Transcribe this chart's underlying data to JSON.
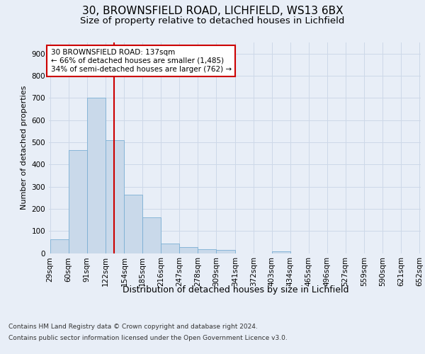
{
  "title1": "30, BROWNSFIELD ROAD, LICHFIELD, WS13 6BX",
  "title2": "Size of property relative to detached houses in Lichfield",
  "xlabel": "Distribution of detached houses by size in Lichfield",
  "ylabel": "Number of detached properties",
  "bar_edges": [
    29,
    60,
    91,
    122,
    154,
    185,
    216,
    247,
    278,
    309,
    341,
    372,
    403,
    434,
    465,
    496,
    527,
    559,
    590,
    621,
    652
  ],
  "bar_heights": [
    62,
    465,
    700,
    510,
    265,
    160,
    42,
    28,
    18,
    13,
    0,
    0,
    8,
    0,
    0,
    0,
    0,
    0,
    0,
    0
  ],
  "bar_color": "#c9d9ea",
  "bar_edgecolor": "#7bafd4",
  "vline_x": 137,
  "vline_color": "#cc0000",
  "annotation_text": "30 BROWNSFIELD ROAD: 137sqm\n← 66% of detached houses are smaller (1,485)\n34% of semi-detached houses are larger (762) →",
  "annotation_box_facecolor": "#ffffff",
  "annotation_box_edgecolor": "#cc0000",
  "ylim": [
    0,
    950
  ],
  "yticks": [
    0,
    100,
    200,
    300,
    400,
    500,
    600,
    700,
    800,
    900
  ],
  "grid_color": "#cdd8e8",
  "background_color": "#e8eef7",
  "footer_line1": "Contains HM Land Registry data © Crown copyright and database right 2024.",
  "footer_line2": "Contains public sector information licensed under the Open Government Licence v3.0.",
  "title1_fontsize": 11,
  "title2_fontsize": 9.5,
  "xlabel_fontsize": 9,
  "ylabel_fontsize": 8,
  "tick_fontsize": 7.5,
  "footer_fontsize": 6.5,
  "annotation_fontsize": 7.5
}
